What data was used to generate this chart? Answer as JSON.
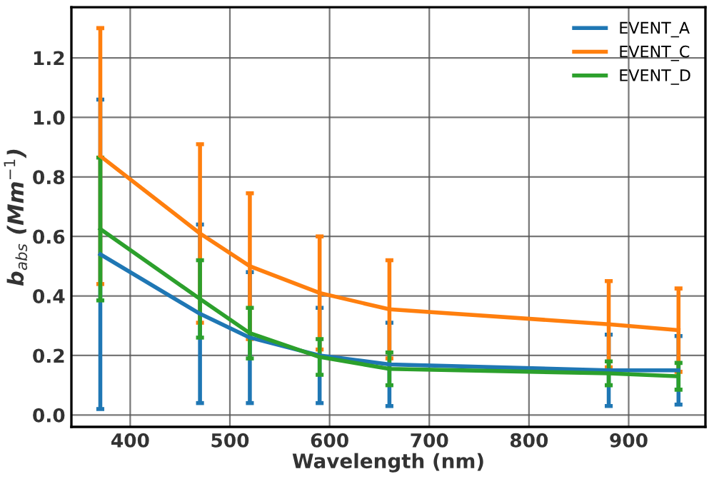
{
  "chart_data": {
    "type": "line",
    "xlabel": "Wavelength (nm)",
    "ylabel": "b$_{abs}$ (Mm$^{−1}$)",
    "x": [
      370,
      470,
      520,
      590,
      660,
      880,
      950
    ],
    "series": [
      {
        "name": "EVENT_A",
        "color": "#1f77b4",
        "values": [
          0.54,
          0.34,
          0.26,
          0.2,
          0.17,
          0.15,
          0.15
        ],
        "errors": [
          0.52,
          0.3,
          0.22,
          0.16,
          0.14,
          0.12,
          0.115
        ]
      },
      {
        "name": "EVENT_C",
        "color": "#ff7f0e",
        "values": [
          0.87,
          0.61,
          0.5,
          0.41,
          0.355,
          0.305,
          0.285
        ],
        "errors": [
          0.43,
          0.3,
          0.245,
          0.19,
          0.165,
          0.145,
          0.14
        ]
      },
      {
        "name": "EVENT_D",
        "color": "#2ca02c",
        "values": [
          0.625,
          0.39,
          0.275,
          0.195,
          0.155,
          0.14,
          0.13
        ],
        "errors": [
          0.24,
          0.13,
          0.085,
          0.06,
          0.055,
          0.04,
          0.045
        ]
      }
    ],
    "xlim": [
      341,
      977
    ],
    "ylim": [
      -0.04,
      1.37
    ],
    "xticks": [
      400,
      500,
      600,
      700,
      800,
      900
    ],
    "yticks": [
      {
        "value": 0,
        "label": "0.0"
      },
      {
        "value": 0.2,
        "label": "0.2"
      },
      {
        "value": 0.4,
        "label": "0.4"
      },
      {
        "value": 0.6,
        "label": "0.6"
      },
      {
        "value": 0.8,
        "label": "0.8"
      },
      {
        "value": 1.0,
        "label": "1.0"
      },
      {
        "value": 1.2,
        "label": "1.2"
      }
    ],
    "grid": true,
    "legend": "top right"
  }
}
